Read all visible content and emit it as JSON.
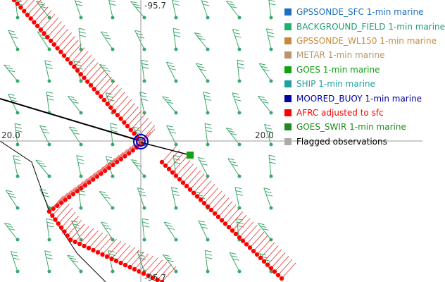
{
  "map": {
    "axis_labels": {
      "top": "-95.7",
      "left": "20.0",
      "right": "20.0",
      "bottom": "-95.7"
    }
  },
  "legend": [
    {
      "label": "GPSSONDE_SFC 1-min marine",
      "color": "#1f6fbf",
      "text_color": "#1f6fbf"
    },
    {
      "label": "BACKGROUND_FIELD 1-min marine",
      "color": "#20b070",
      "text_color": "#20a070"
    },
    {
      "label": "GPSSONDE_WL150 1-min marine",
      "color": "#c88a3a",
      "text_color": "#c88a3a"
    },
    {
      "label": "METAR 1-min marine",
      "color": "#b8956a",
      "text_color": "#b8956a"
    },
    {
      "label": "GOES 1-min marine",
      "color": "#10a010",
      "text_color": "#10a010"
    },
    {
      "label": "SHIP 1-min marine",
      "color": "#20a0a0",
      "text_color": "#20a0a0"
    },
    {
      "label": "MOORED_BUOY 1-min marine",
      "color": "#0000a0",
      "text_color": "#0000a0"
    },
    {
      "label": "AFRC adjusted to sfc",
      "color": "#ff0000",
      "text_color": "#ff0000"
    },
    {
      "label": "GOES_SWIR 1-min marine",
      "color": "#208a20",
      "text_color": "#208a20"
    },
    {
      "label": "Flagged observations",
      "color": "#aaaaaa",
      "text_color": "#000000"
    }
  ]
}
